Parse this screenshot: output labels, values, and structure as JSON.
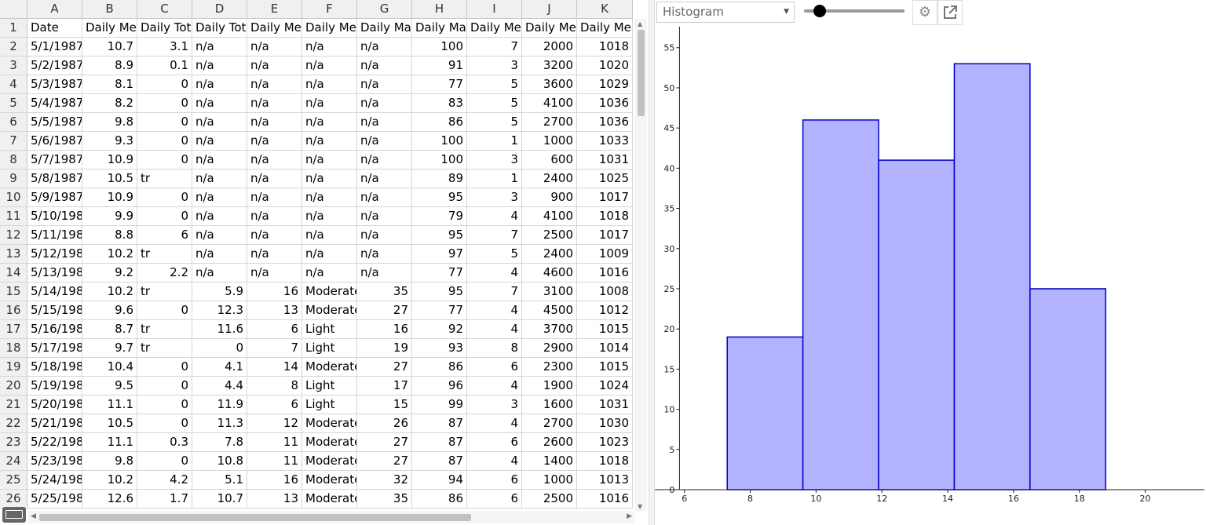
{
  "spreadsheet": {
    "columns": [
      "A",
      "B",
      "C",
      "D",
      "E",
      "F",
      "G",
      "H",
      "I",
      "J",
      "K"
    ],
    "rows": [
      [
        "Date",
        "Daily Mea",
        "Daily Tota",
        "Daily Tota",
        "Daily Mea",
        "Daily Mea",
        "Daily Max",
        "Daily Max",
        "Daily Mea",
        "Daily Mea",
        "Daily Mea"
      ],
      [
        "5/1/1987",
        "10.7",
        "3.1",
        "n/a",
        "n/a",
        "n/a",
        "n/a",
        "100",
        "7",
        "2000",
        "1018"
      ],
      [
        "5/2/1987",
        "8.9",
        "0.1",
        "n/a",
        "n/a",
        "n/a",
        "n/a",
        "91",
        "3",
        "3200",
        "1020"
      ],
      [
        "5/3/1987",
        "8.1",
        "0",
        "n/a",
        "n/a",
        "n/a",
        "n/a",
        "77",
        "5",
        "3600",
        "1029"
      ],
      [
        "5/4/1987",
        "8.2",
        "0",
        "n/a",
        "n/a",
        "n/a",
        "n/a",
        "83",
        "5",
        "4100",
        "1036"
      ],
      [
        "5/5/1987",
        "9.8",
        "0",
        "n/a",
        "n/a",
        "n/a",
        "n/a",
        "86",
        "5",
        "2700",
        "1036"
      ],
      [
        "5/6/1987",
        "9.3",
        "0",
        "n/a",
        "n/a",
        "n/a",
        "n/a",
        "100",
        "1",
        "1000",
        "1033"
      ],
      [
        "5/7/1987",
        "10.9",
        "0",
        "n/a",
        "n/a",
        "n/a",
        "n/a",
        "100",
        "3",
        "600",
        "1031"
      ],
      [
        "5/8/1987",
        "10.5",
        "tr",
        "n/a",
        "n/a",
        "n/a",
        "n/a",
        "89",
        "1",
        "2400",
        "1025"
      ],
      [
        "5/9/1987",
        "10.9",
        "0",
        "n/a",
        "n/a",
        "n/a",
        "n/a",
        "95",
        "3",
        "900",
        "1017"
      ],
      [
        "5/10/198",
        "9.9",
        "0",
        "n/a",
        "n/a",
        "n/a",
        "n/a",
        "79",
        "4",
        "4100",
        "1018"
      ],
      [
        "5/11/198",
        "8.8",
        "6",
        "n/a",
        "n/a",
        "n/a",
        "n/a",
        "95",
        "7",
        "2500",
        "1017"
      ],
      [
        "5/12/198",
        "10.2",
        "tr",
        "n/a",
        "n/a",
        "n/a",
        "n/a",
        "97",
        "5",
        "2400",
        "1009"
      ],
      [
        "5/13/198",
        "9.2",
        "2.2",
        "n/a",
        "n/a",
        "n/a",
        "n/a",
        "77",
        "4",
        "4600",
        "1016"
      ],
      [
        "5/14/198",
        "10.2",
        "tr",
        "5.9",
        "16",
        "Moderate",
        "35",
        "95",
        "7",
        "3100",
        "1008"
      ],
      [
        "5/15/198",
        "9.6",
        "0",
        "12.3",
        "13",
        "Moderate",
        "27",
        "77",
        "4",
        "4500",
        "1012"
      ],
      [
        "5/16/198",
        "8.7",
        "tr",
        "11.6",
        "6",
        "Light",
        "16",
        "92",
        "4",
        "3700",
        "1015"
      ],
      [
        "5/17/198",
        "9.7",
        "tr",
        "0",
        "7",
        "Light",
        "19",
        "93",
        "8",
        "2900",
        "1014"
      ],
      [
        "5/18/198",
        "10.4",
        "0",
        "4.1",
        "14",
        "Moderate",
        "27",
        "86",
        "6",
        "2300",
        "1015"
      ],
      [
        "5/19/198",
        "9.5",
        "0",
        "4.4",
        "8",
        "Light",
        "17",
        "96",
        "4",
        "1900",
        "1024"
      ],
      [
        "5/20/198",
        "11.1",
        "0",
        "11.9",
        "6",
        "Light",
        "15",
        "99",
        "3",
        "1600",
        "1031"
      ],
      [
        "5/21/198",
        "10.5",
        "0",
        "11.3",
        "12",
        "Moderate",
        "26",
        "87",
        "4",
        "2700",
        "1030"
      ],
      [
        "5/22/198",
        "11.1",
        "0.3",
        "7.8",
        "11",
        "Moderate",
        "27",
        "87",
        "6",
        "2600",
        "1023"
      ],
      [
        "5/23/198",
        "9.8",
        "0",
        "10.8",
        "11",
        "Moderate",
        "27",
        "87",
        "4",
        "1400",
        "1018"
      ],
      [
        "5/24/198",
        "10.2",
        "4.2",
        "5.1",
        "16",
        "Moderate",
        "32",
        "94",
        "6",
        "1000",
        "1013"
      ],
      [
        "5/25/198",
        "12.6",
        "1.7",
        "10.7",
        "13",
        "Moderate",
        "35",
        "86",
        "6",
        "2500",
        "1016"
      ]
    ]
  },
  "toolbar": {
    "chart_type": "Histogram",
    "settings_icon": "gear-icon",
    "popout_icon": "popout-icon"
  },
  "colors": {
    "bar_fill": "#b2b2ff",
    "bar_stroke": "#0000cc"
  },
  "chart_data": {
    "type": "bar",
    "bins": [
      [
        7.3,
        9.6
      ],
      [
        9.6,
        11.9
      ],
      [
        11.9,
        14.2
      ],
      [
        14.2,
        16.5
      ],
      [
        16.5,
        18.8
      ]
    ],
    "values": [
      19,
      46,
      41,
      53,
      25
    ],
    "xlim": [
      5.1,
      21.8
    ],
    "ylim": [
      0,
      58
    ],
    "xticks": [
      6,
      8,
      10,
      12,
      14,
      16,
      18,
      20
    ],
    "yticks": [
      0,
      5,
      10,
      15,
      20,
      25,
      30,
      35,
      40,
      45,
      50,
      55
    ],
    "grid": false
  }
}
